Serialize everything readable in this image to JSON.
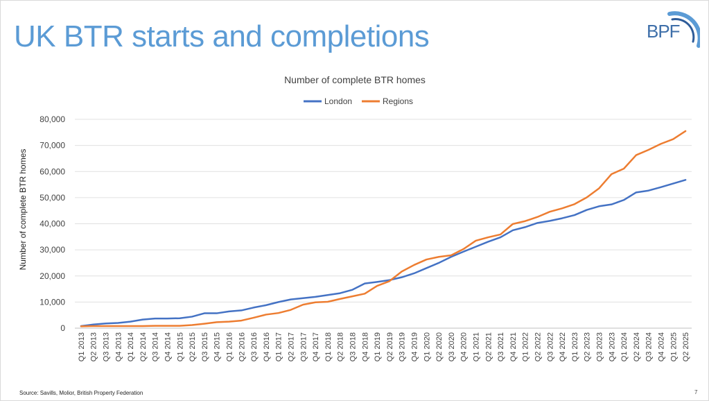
{
  "slide": {
    "title": "UK BTR starts and completions",
    "logo_text": "BPF",
    "source": "Source: Savills, Molior, British Property Federation",
    "page_number": "7"
  },
  "chart_data": {
    "type": "line",
    "title": "Number of complete BTR homes",
    "xlabel": "",
    "ylabel": "Number of complete BTR homes",
    "ylim": [
      0,
      80000
    ],
    "yticks": [
      0,
      10000,
      20000,
      30000,
      40000,
      50000,
      60000,
      70000,
      80000
    ],
    "ytick_labels": [
      "0",
      "10,000",
      "20,000",
      "30,000",
      "40,000",
      "50,000",
      "60,000",
      "70,000",
      "80,000"
    ],
    "grid": true,
    "legend_position": "top-center",
    "categories": [
      "Q1 2013",
      "Q2 2013",
      "Q3 2013",
      "Q4 2013",
      "Q1 2014",
      "Q2 2014",
      "Q3 2014",
      "Q4 2014",
      "Q1 2015",
      "Q2 2015",
      "Q3 2015",
      "Q4 2015",
      "Q1 2016",
      "Q2 2016",
      "Q3 2016",
      "Q4 2016",
      "Q1 2017",
      "Q2 2017",
      "Q3 2017",
      "Q4 2017",
      "Q1 2018",
      "Q2 2018",
      "Q3 2018",
      "Q4 2018",
      "Q1 2019",
      "Q2 2019",
      "Q3 2019",
      "Q4 2019",
      "Q1 2020",
      "Q2 2020",
      "Q3 2020",
      "Q4 2020",
      "Q1 2021",
      "Q2 2021",
      "Q3 2021",
      "Q4 2021",
      "Q1 2022",
      "Q2 2022",
      "Q3 2022",
      "Q4 2022",
      "Q1 2023",
      "Q2 2023",
      "Q3 2023",
      "Q4 2023",
      "Q1 2024",
      "Q2 2024",
      "Q3 2024",
      "Q4 2024",
      "Q1 2025",
      "Q2 2025"
    ],
    "series": [
      {
        "name": "London",
        "color": "#4472c4",
        "values": [
          800,
          1400,
          1800,
          2000,
          2500,
          3300,
          3700,
          3700,
          3800,
          4400,
          5700,
          5700,
          6400,
          6800,
          7900,
          8800,
          10000,
          11000,
          11500,
          12000,
          12700,
          13400,
          14700,
          17100,
          17700,
          18400,
          19500,
          21000,
          23000,
          25000,
          27300,
          29300,
          31200,
          33100,
          34800,
          37500,
          38700,
          40300,
          41100,
          42100,
          43300,
          45300,
          46700,
          47400,
          49100,
          52000,
          52700,
          54000,
          55400,
          56800
        ]
      },
      {
        "name": "Regions",
        "color": "#ed7d31",
        "values": [
          700,
          800,
          800,
          800,
          800,
          800,
          900,
          900,
          900,
          1200,
          1700,
          2300,
          2500,
          2900,
          4000,
          5200,
          5800,
          7000,
          9000,
          9900,
          10100,
          11200,
          12200,
          13200,
          16200,
          18000,
          21700,
          24200,
          26300,
          27300,
          27900,
          30300,
          33500,
          34800,
          35900,
          39900,
          41000,
          42600,
          44600,
          45900,
          47500,
          50100,
          53600,
          59000,
          61100,
          66300,
          68300,
          70600,
          72400,
          75500
        ]
      }
    ]
  }
}
